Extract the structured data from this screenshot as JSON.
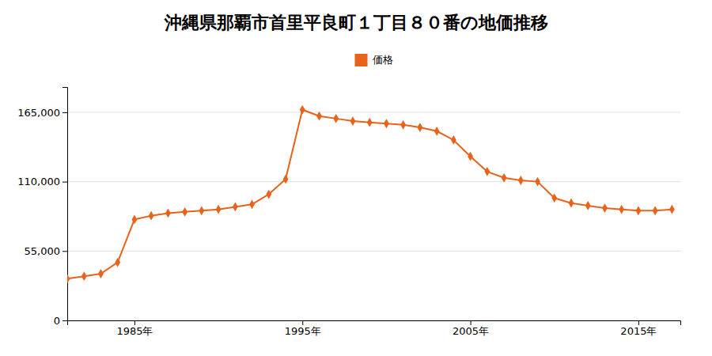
{
  "chart_data": {
    "type": "line",
    "title": "沖縄県那覇市首里平良町１丁目８０番の地価推移",
    "x": [
      1981,
      1982,
      1983,
      1984,
      1985,
      1986,
      1987,
      1988,
      1989,
      1990,
      1991,
      1992,
      1993,
      1994,
      1995,
      1996,
      1997,
      1998,
      1999,
      2000,
      2001,
      2002,
      2003,
      2004,
      2005,
      2006,
      2007,
      2008,
      2009,
      2010,
      2011,
      2012,
      2013,
      2014,
      2015,
      2016,
      2017
    ],
    "series": [
      {
        "name": "価格",
        "color": "#e8621a",
        "marker": "diamond",
        "values": [
          33000,
          35000,
          37000,
          46000,
          80000,
          83000,
          85000,
          86000,
          87000,
          88000,
          90000,
          92000,
          100000,
          112000,
          167000,
          162000,
          160000,
          158000,
          157000,
          156000,
          155000,
          153000,
          150000,
          143000,
          130000,
          118000,
          113000,
          111000,
          110000,
          97000,
          93000,
          91000,
          89000,
          88000,
          87000,
          87000,
          88000
        ]
      }
    ],
    "xlim": [
      1981.0,
      2017.5
    ],
    "xticks": [
      {
        "value": 1985,
        "label": "1985年"
      },
      {
        "value": 1995,
        "label": "1995年"
      },
      {
        "value": 2005,
        "label": "2005年"
      },
      {
        "value": 2015,
        "label": "2015年"
      }
    ],
    "ylim": [
      0,
      185000
    ],
    "yticks": [
      0,
      {
        "value": 55000,
        "label": "55,000"
      },
      {
        "value": 110000,
        "label": "110,000"
      },
      {
        "value": 165000,
        "label": "165,000"
      }
    ],
    "grid": true,
    "legend": "top"
  }
}
